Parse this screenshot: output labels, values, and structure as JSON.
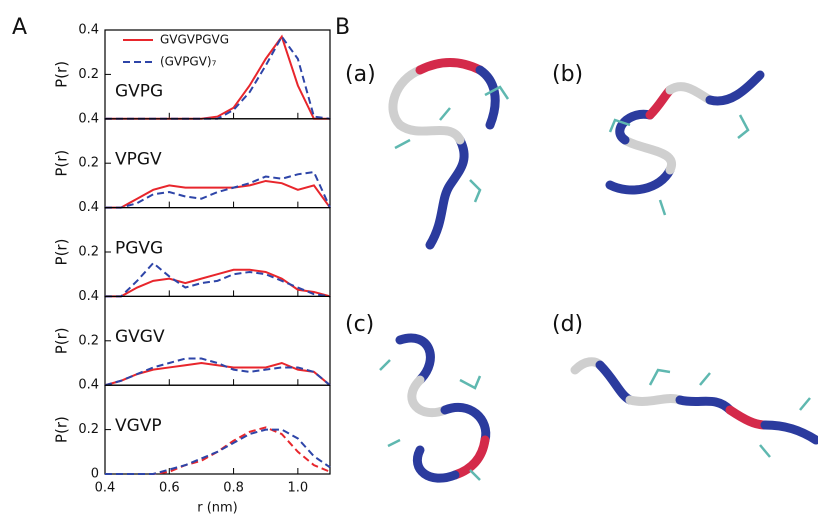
{
  "panel_labels": {
    "a": "A",
    "b": "B"
  },
  "structures": [
    "(a)",
    "(b)",
    "(c)",
    "(d)"
  ],
  "chart_data": [
    {
      "type": "line",
      "annotation": "GVPG",
      "ylabel": "P(r)",
      "legend": "upper left",
      "x": [
        0.4,
        0.45,
        0.5,
        0.55,
        0.6,
        0.65,
        0.7,
        0.75,
        0.8,
        0.85,
        0.9,
        0.95,
        1.0,
        1.05,
        1.1
      ],
      "xlim": [
        0.4,
        1.1
      ],
      "ylim": [
        0,
        0.4
      ],
      "yticks": [
        0.2,
        0.4
      ],
      "series": [
        {
          "name": "GVGVPGVG",
          "color": "#e8262c",
          "style": "solid",
          "values": [
            0,
            0,
            0,
            0,
            0,
            0,
            0,
            0.01,
            0.05,
            0.15,
            0.27,
            0.37,
            0.15,
            0,
            0
          ]
        },
        {
          "name": "(GVPGV)₇",
          "color": "#2e45a8",
          "style": "dashed",
          "values": [
            0,
            0,
            0,
            0,
            0,
            0,
            0,
            0,
            0.04,
            0.12,
            0.24,
            0.37,
            0.27,
            0.01,
            0
          ]
        }
      ]
    },
    {
      "type": "line",
      "annotation": "VPGV",
      "ylabel": "P(r)",
      "x": [
        0.4,
        0.45,
        0.5,
        0.55,
        0.6,
        0.65,
        0.7,
        0.75,
        0.8,
        0.85,
        0.9,
        0.95,
        1.0,
        1.05,
        1.1
      ],
      "xlim": [
        0.4,
        1.1
      ],
      "ylim": [
        0,
        0.4
      ],
      "yticks": [
        0.2,
        0.4
      ],
      "series": [
        {
          "color": "#e8262c",
          "style": "solid",
          "values": [
            0,
            0,
            0.04,
            0.08,
            0.1,
            0.09,
            0.09,
            0.09,
            0.09,
            0.1,
            0.12,
            0.11,
            0.08,
            0.1,
            0
          ]
        },
        {
          "color": "#2e45a8",
          "style": "dashed",
          "values": [
            0,
            0,
            0.02,
            0.06,
            0.07,
            0.05,
            0.04,
            0.07,
            0.09,
            0.11,
            0.14,
            0.13,
            0.15,
            0.16,
            0
          ]
        }
      ]
    },
    {
      "type": "line",
      "annotation": "PGVG",
      "ylabel": "P(r)",
      "x": [
        0.4,
        0.45,
        0.5,
        0.55,
        0.6,
        0.65,
        0.7,
        0.75,
        0.8,
        0.85,
        0.9,
        0.95,
        1.0,
        1.05,
        1.1
      ],
      "xlim": [
        0.4,
        1.1
      ],
      "ylim": [
        0,
        0.4
      ],
      "yticks": [
        0.2,
        0.4
      ],
      "series": [
        {
          "color": "#e8262c",
          "style": "solid",
          "values": [
            0,
            0,
            0.04,
            0.07,
            0.08,
            0.06,
            0.08,
            0.1,
            0.12,
            0.12,
            0.11,
            0.08,
            0.03,
            0.02,
            0
          ]
        },
        {
          "color": "#2e45a8",
          "style": "dashed",
          "values": [
            0,
            0,
            0.07,
            0.15,
            0.09,
            0.04,
            0.06,
            0.07,
            0.1,
            0.11,
            0.1,
            0.07,
            0.04,
            0.01,
            0
          ]
        }
      ]
    },
    {
      "type": "line",
      "annotation": "GVGV",
      "ylabel": "P(r)",
      "x": [
        0.4,
        0.45,
        0.5,
        0.55,
        0.6,
        0.65,
        0.7,
        0.75,
        0.8,
        0.85,
        0.9,
        0.95,
        1.0,
        1.05,
        1.1
      ],
      "xlim": [
        0.4,
        1.1
      ],
      "ylim": [
        0,
        0.4
      ],
      "yticks": [
        0.2,
        0.4
      ],
      "series": [
        {
          "color": "#e8262c",
          "style": "solid",
          "values": [
            0,
            0.02,
            0.05,
            0.07,
            0.08,
            0.09,
            0.1,
            0.09,
            0.08,
            0.08,
            0.08,
            0.1,
            0.07,
            0.06,
            0
          ]
        },
        {
          "color": "#2e45a8",
          "style": "dashed",
          "values": [
            0,
            0.02,
            0.05,
            0.08,
            0.1,
            0.12,
            0.12,
            0.1,
            0.07,
            0.06,
            0.07,
            0.08,
            0.08,
            0.06,
            0
          ]
        }
      ]
    },
    {
      "type": "line",
      "annotation": "VGVP",
      "ylabel": "P(r)",
      "xlabel": "r (nm)",
      "x": [
        0.4,
        0.45,
        0.5,
        0.55,
        0.6,
        0.65,
        0.7,
        0.75,
        0.8,
        0.85,
        0.9,
        0.95,
        1.0,
        1.05,
        1.1
      ],
      "xlim": [
        0.4,
        1.1
      ],
      "ylim": [
        0,
        0.4
      ],
      "yticks": [
        0,
        0.2,
        0.4
      ],
      "xticks": [
        0.4,
        0.6,
        0.8,
        {
          "value": 1.0,
          "label": "1.0"
        }
      ],
      "series": [
        {
          "color": "#e8262c",
          "style": "dashed",
          "values": [
            0,
            0,
            0,
            0,
            0.01,
            0.04,
            0.06,
            0.1,
            0.15,
            0.19,
            0.21,
            0.18,
            0.1,
            0.04,
            0.01
          ]
        },
        {
          "color": "#2e45a8",
          "style": "dashed",
          "values": [
            0,
            0,
            0,
            0,
            0.02,
            0.04,
            0.07,
            0.1,
            0.14,
            0.18,
            0.2,
            0.2,
            0.16,
            0.08,
            0.03
          ]
        }
      ]
    }
  ]
}
